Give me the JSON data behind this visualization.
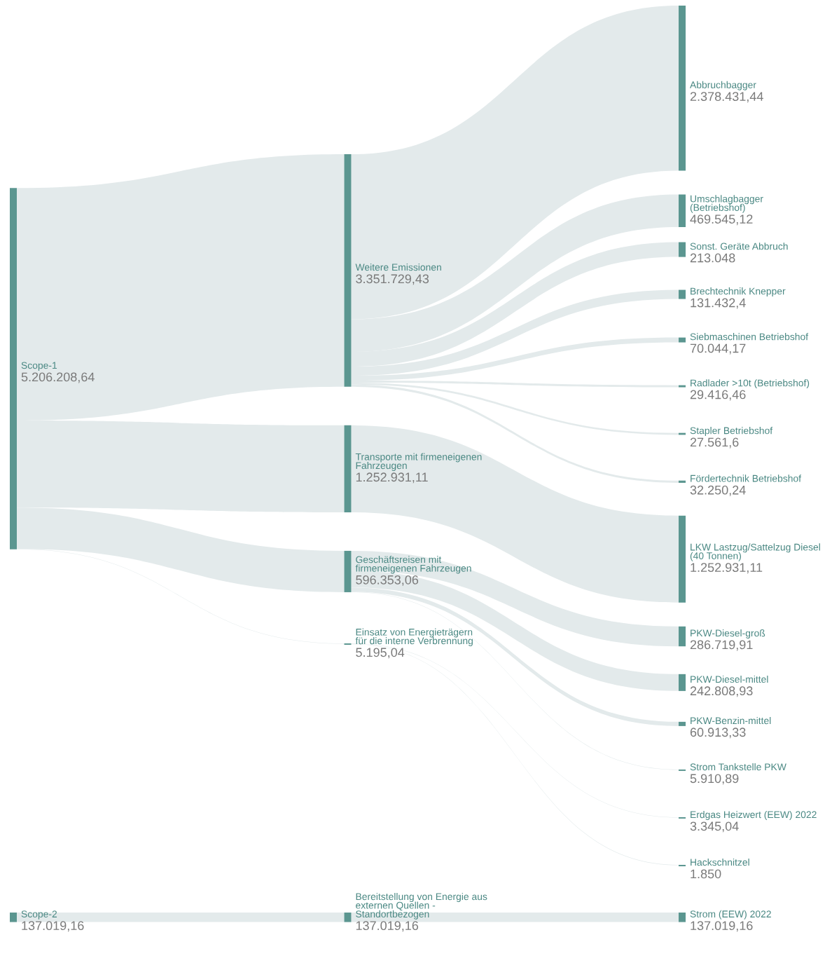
{
  "chart_data": {
    "type": "other",
    "categories": [
      "Scope-1",
      "Weitere Emissionen",
      "Abbruchbagger",
      "Umschlagbagger\n(Betriebshof)",
      "Sonst. Geräte Abbruch",
      "Brechtechnik Knepper",
      "Siebmaschinen Betriebshof",
      "Radlader >10t (Betriebshof)",
      "Stapler Betriebshof",
      "Fördertechnik Betriebshof",
      "Transporte mit firmeneigenen\nFahrzeugen",
      "LKW Lastzug/Sattelzug Diesel\n(40 Tonnen)",
      "Geschäftsreisen mit\nfirmeneigenen Fahrzeugen",
      "PKW-Diesel-groß",
      "PKW-Diesel-mittel",
      "PKW-Benzin-mittel",
      "Strom Tankstelle PKW",
      "Einsatz von Energieträgern\nfür die interne Verbrennung",
      "Erdgas Heizwert (EEW) 2022",
      "Hackschnitzel",
      "Scope-2",
      "Bereitstellung von Energie aus\nexternen Quellen -\nStandortbezogen",
      "Strom (EEW) 2022"
    ],
    "values": [
      5206208.64,
      3351729.43,
      2378431.44,
      469545.12,
      213048,
      131432.4,
      70044.17,
      29416.46,
      27561.6,
      32250.24,
      1252931.11,
      1252931.11,
      596353.06,
      286719.91,
      242808.93,
      60913.33,
      5910.89,
      5195.04,
      3345.04,
      1850,
      137019.16,
      137019.16,
      137019.16
    ],
    "value_labels": [
      "5.206.208,64",
      "3.351.729,43",
      "2.378.431,44",
      "469.545,12",
      "213.048",
      "131.432,4",
      "70.044,17",
      "29.416,46",
      "27.561,6",
      "32.250,24",
      "1.252.931,11",
      "1.252.931,11",
      "596.353,06",
      "286.719,91",
      "242.808,93",
      "60.913,33",
      "5.910,89",
      "5.195,04",
      "3.345,04",
      "1.850",
      "137.019,16",
      "137.019,16",
      "137.019,16"
    ]
  }
}
